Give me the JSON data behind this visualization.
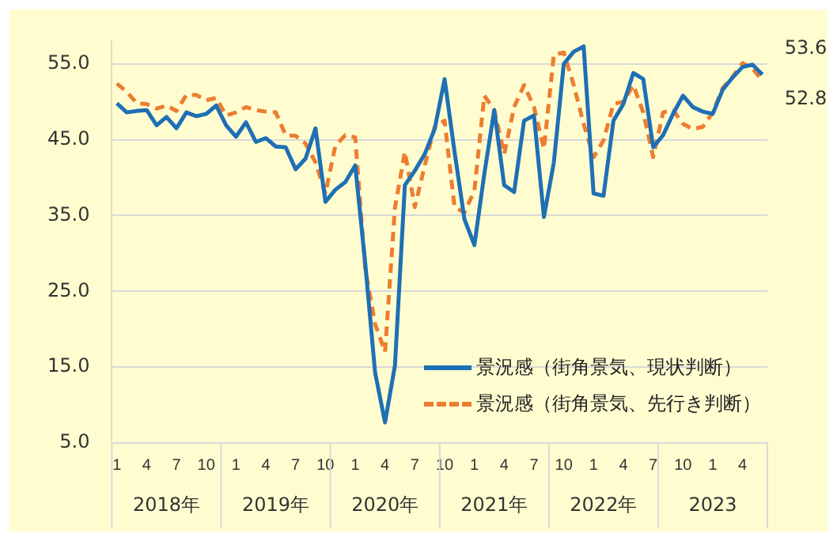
{
  "chart_data": {
    "type": "line",
    "categories": [
      "1",
      null,
      null,
      "4",
      null,
      null,
      "7",
      null,
      null,
      "10",
      null,
      null,
      "1",
      null,
      null,
      "4",
      null,
      null,
      "7",
      null,
      null,
      "10",
      null,
      null,
      "1",
      null,
      null,
      "4",
      null,
      null,
      "7",
      null,
      null,
      "10",
      null,
      null,
      "1",
      null,
      null,
      "4",
      null,
      null,
      "7",
      null,
      null,
      "10",
      null,
      null,
      "1",
      null,
      null,
      "4",
      null,
      null,
      "7",
      null,
      null,
      "10",
      null,
      null,
      "1",
      null,
      null,
      "4",
      null,
      null
    ],
    "annotations": [
      "2018年",
      "2019年",
      "2020年",
      "2021年",
      "2022年",
      "2023"
    ],
    "series": [
      {
        "name": "景況感（街角景気、現状判断）",
        "color": "#1f6fb5",
        "line_style": "solid",
        "values": [
          49.8,
          48.6,
          48.8,
          48.9,
          46.9,
          48.0,
          46.5,
          48.6,
          48.1,
          48.4,
          49.5,
          46.9,
          45.4,
          47.3,
          44.7,
          45.2,
          44.1,
          44.0,
          41.1,
          42.5,
          46.5,
          36.8,
          38.4,
          39.4,
          41.6,
          28.8,
          14.3,
          7.7,
          15.2,
          39.0,
          40.9,
          43.1,
          46.4,
          53.0,
          43.4,
          34.5,
          31.1,
          40.5,
          48.9,
          39.0,
          38.1,
          47.5,
          48.2,
          34.8,
          42.0,
          55.0,
          56.6,
          57.3,
          37.9,
          37.6,
          47.5,
          49.7,
          53.8,
          53.0,
          44.0,
          45.6,
          48.4,
          50.8,
          49.3,
          48.7,
          48.4,
          51.6,
          53.2,
          54.6,
          54.9,
          53.6
        ],
        "value_labels": [
          null,
          null,
          null,
          null,
          null,
          null,
          null,
          null,
          null,
          null,
          null,
          null,
          null,
          null,
          null,
          null,
          null,
          null,
          null,
          null,
          null,
          null,
          null,
          null,
          null,
          null,
          null,
          null,
          null,
          null,
          null,
          null,
          null,
          null,
          null,
          null,
          null,
          null,
          null,
          null,
          null,
          null,
          null,
          null,
          null,
          null,
          null,
          null,
          null,
          null,
          null,
          null,
          null,
          null,
          null,
          null,
          null,
          null,
          null,
          null,
          null,
          null,
          null,
          null,
          null,
          "53.6"
        ]
      },
      {
        "name": "景況感（街角景気、先行き判断）",
        "color": "#ed7d31",
        "line_style": "dashed",
        "values": [
          52.4,
          51.3,
          49.8,
          49.7,
          49.1,
          49.5,
          48.8,
          50.9,
          50.9,
          50.2,
          50.5,
          48.2,
          48.6,
          49.3,
          48.9,
          48.7,
          48.6,
          45.6,
          45.5,
          44.5,
          42.0,
          37.9,
          44.2,
          45.6,
          45.3,
          28.0,
          20.7,
          17.0,
          36.0,
          43.4,
          36.1,
          41.6,
          46.7,
          47.5,
          36.1,
          35.4,
          38.3,
          50.8,
          48.9,
          43.1,
          49.3,
          52.2,
          49.3,
          43.8,
          56.2,
          56.5,
          52.2,
          47.1,
          42.7,
          44.9,
          49.7,
          50.0,
          52.2,
          48.6,
          42.7,
          48.6,
          48.9,
          47.1,
          46.4,
          46.7,
          48.6,
          51.8,
          53.3,
          55.1,
          54.4,
          52.8
        ],
        "value_labels": [
          null,
          null,
          null,
          null,
          null,
          null,
          null,
          null,
          null,
          null,
          null,
          null,
          null,
          null,
          null,
          null,
          null,
          null,
          null,
          null,
          null,
          null,
          null,
          null,
          null,
          null,
          null,
          null,
          null,
          null,
          null,
          null,
          null,
          null,
          null,
          null,
          null,
          null,
          null,
          null,
          null,
          null,
          null,
          null,
          null,
          null,
          null,
          null,
          null,
          null,
          null,
          null,
          null,
          null,
          null,
          null,
          null,
          null,
          null,
          null,
          null,
          null,
          null,
          null,
          null,
          "52.8"
        ]
      }
    ],
    "ylim": [
      5,
      58
    ],
    "yticks": [
      {
        "value": 5,
        "label": "5.0"
      },
      {
        "value": 15,
        "label": "15.0"
      },
      {
        "value": 25,
        "label": "25.0"
      },
      {
        "value": 35,
        "label": "35.0"
      },
      {
        "value": 45,
        "label": "45.0"
      },
      {
        "value": 55,
        "label": "55.0"
      }
    ],
    "grid": "y",
    "legend": "bottom right",
    "marker": "none"
  }
}
